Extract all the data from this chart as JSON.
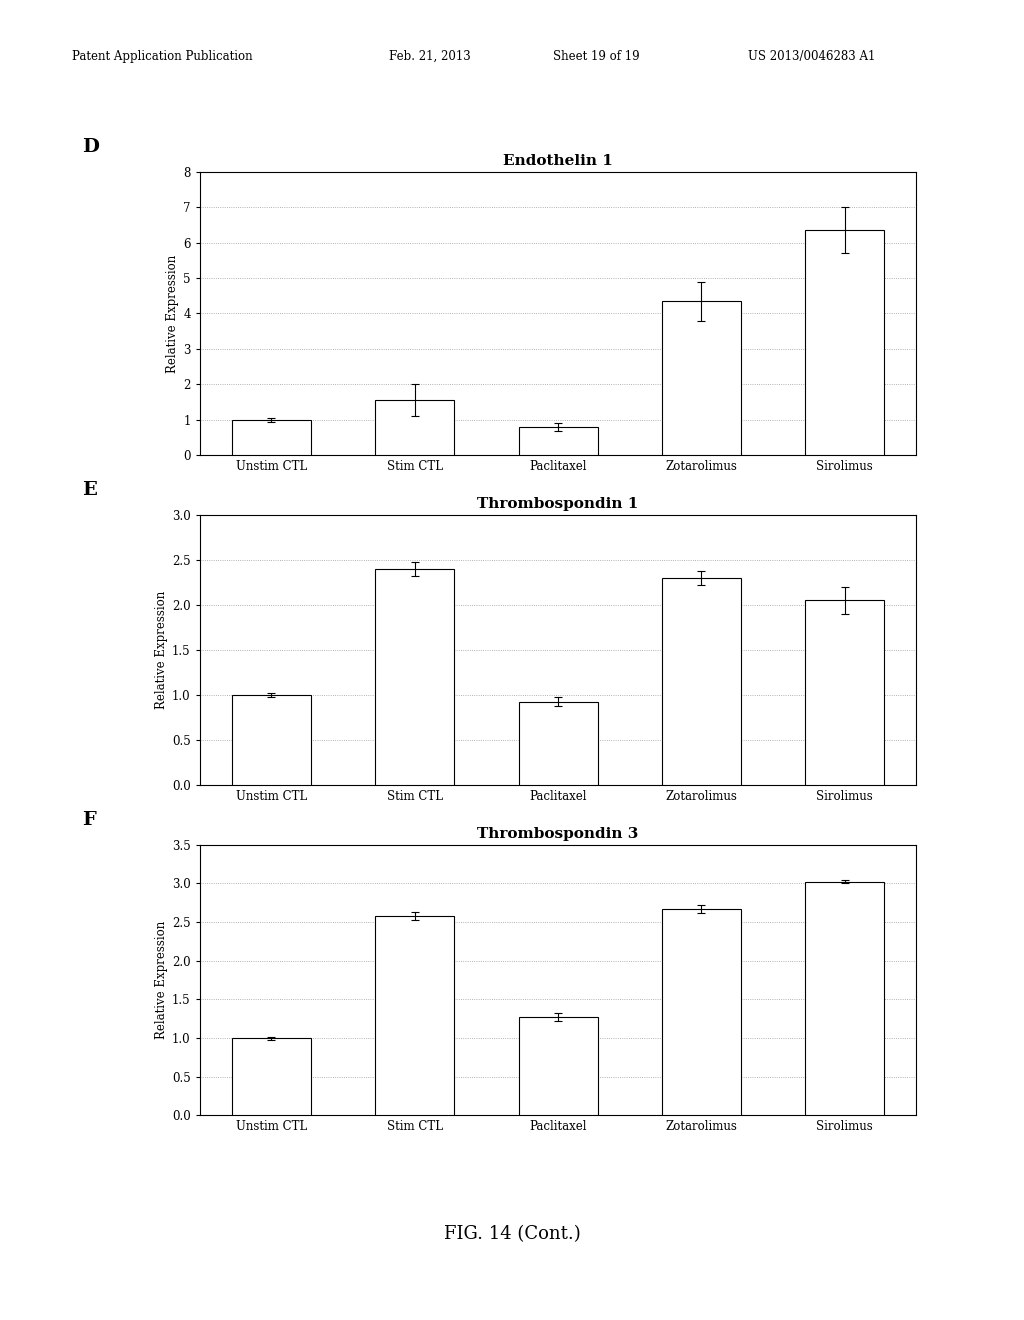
{
  "panel_D": {
    "title": "Endothelin 1",
    "label": "D",
    "categories": [
      "Unstim CTL",
      "Stim CTL",
      "Paclitaxel",
      "Zotarolimus",
      "Sirolimus"
    ],
    "values": [
      1.0,
      1.55,
      0.8,
      4.35,
      6.35
    ],
    "errors": [
      0.05,
      0.45,
      0.12,
      0.55,
      0.65
    ],
    "ylim": [
      0,
      8
    ],
    "yticks": [
      0,
      1,
      2,
      3,
      4,
      5,
      6,
      7,
      8
    ],
    "ylabel": "Relative Expression"
  },
  "panel_E": {
    "title": "Thrombospondin 1",
    "label": "E",
    "categories": [
      "Unstim CTL",
      "Stim CTL",
      "Paclitaxel",
      "Zotarolimus",
      "Sirolimus"
    ],
    "values": [
      1.0,
      2.4,
      0.93,
      2.3,
      2.05
    ],
    "errors": [
      0.02,
      0.08,
      0.05,
      0.08,
      0.15
    ],
    "ylim": [
      0,
      3.0
    ],
    "yticks": [
      0.0,
      0.5,
      1.0,
      1.5,
      2.0,
      2.5,
      3.0
    ],
    "ylabel": "Relative Expression"
  },
  "panel_F": {
    "title": "Thrombospondin 3",
    "label": "F",
    "categories": [
      "Unstim CTL",
      "Stim CTL",
      "Paclitaxel",
      "Zotarolimus",
      "Sirolimus"
    ],
    "values": [
      1.0,
      2.58,
      1.27,
      2.67,
      3.02
    ],
    "errors": [
      0.02,
      0.05,
      0.05,
      0.05,
      0.02
    ],
    "ylim": [
      0,
      3.5
    ],
    "yticks": [
      0.0,
      0.5,
      1.0,
      1.5,
      2.0,
      2.5,
      3.0,
      3.5
    ],
    "ylabel": "Relative Expression"
  },
  "bar_color": "#ffffff",
  "bar_edgecolor": "#000000",
  "bar_width": 0.55,
  "header_line1": "Patent Application Publication",
  "header_line2": "Feb. 21, 2013",
  "header_line3": "Sheet 19 of 19",
  "header_line4": "US 2013/0046283 A1",
  "fig_label": "FIG. 14 (Cont.)",
  "background_color": "#ffffff",
  "grid_color": "#999999",
  "grid_style": ":"
}
